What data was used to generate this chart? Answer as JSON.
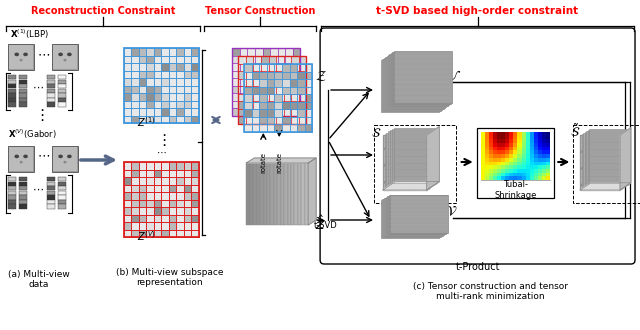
{
  "bg_color": "#ffffff",
  "label_a": "(a) Multi-view\ndata",
  "label_b": "(b) Multi-view subspace\nrepresentation",
  "label_c": "(c) Tensor construction and tensor\nmulti-rank minimization",
  "header_reconstruction": "Reconstruction Constraint",
  "header_tensor": "Tensor Construction",
  "header_tsvd": "t-SVD based high-order constraint",
  "grid_blue": "#4499dd",
  "grid_red": "#dd2222",
  "grid_purple": "#9933bb",
  "arrow_gray": "#556677",
  "tproduct_label": "t-Product",
  "tubal_label": "Tubal-\nShrinkage"
}
